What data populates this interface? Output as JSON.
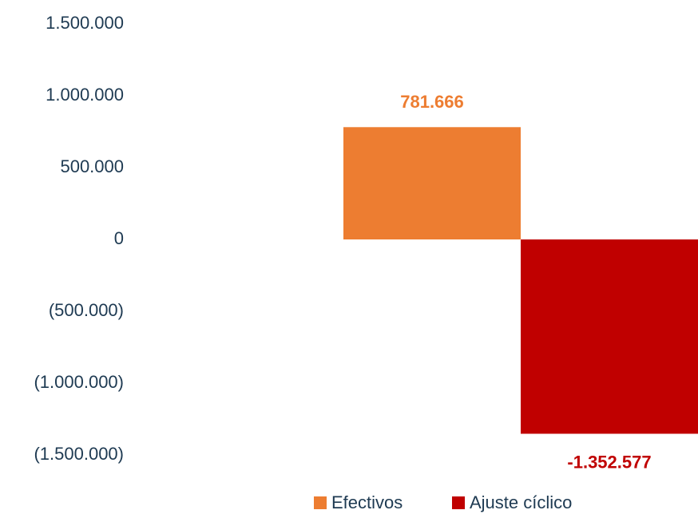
{
  "chart_data": {
    "type": "bar",
    "categories": [
      null
    ],
    "series": [
      {
        "name": "Efectivos",
        "color": "#ed7d31",
        "values": [
          781666
        ],
        "value_labels": [
          "781.666"
        ]
      },
      {
        "name": "Ajuste cíclico",
        "color": "#c00000",
        "values": [
          -1352577
        ],
        "value_labels": [
          "-1.352.577"
        ]
      }
    ],
    "ylim": [
      -1500000,
      1500000
    ],
    "yticks": [
      {
        "value": -1500000,
        "label": "(1.500.000)"
      },
      {
        "value": -1000000,
        "label": "(1.000.000)"
      },
      {
        "value": -500000,
        "label": "(500.000)"
      },
      0,
      {
        "value": 500000,
        "label": "500.000"
      },
      {
        "value": 1000000,
        "label": "1.000.000"
      },
      {
        "value": 1500000,
        "label": "1.500.000"
      }
    ],
    "grid": false,
    "legend": "bottom"
  }
}
